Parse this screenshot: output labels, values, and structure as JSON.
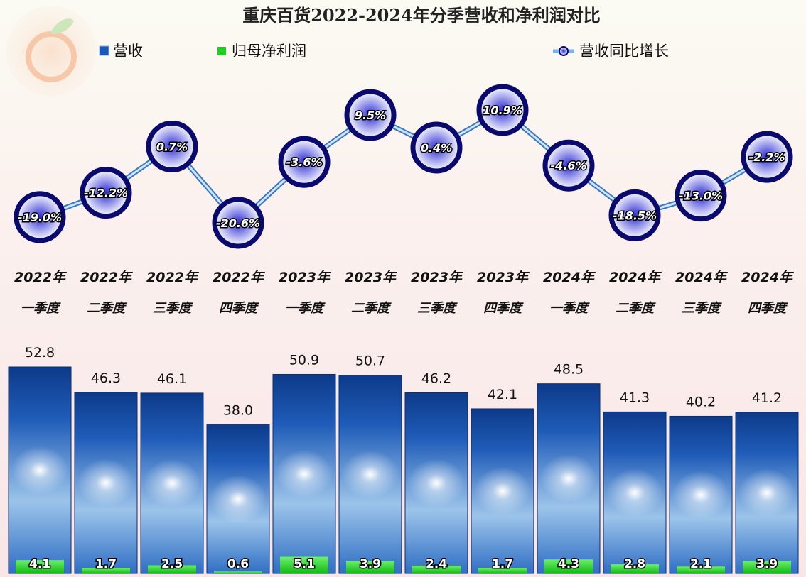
{
  "colors": {
    "revenue_bar": "#1c57b5",
    "revenue_bar_dark": "#0d3a8a",
    "net_profit_bar": "#22cc22",
    "growth_line": "#7fb3e6",
    "growth_marker_ring": "#0a0a6e"
  },
  "chart_data": {
    "type": "bar",
    "title": "重庆百货2022-2024年分季营收和净利润对比",
    "legend_position": "top",
    "categories": [
      [
        "2022年",
        "一季度"
      ],
      [
        "2022年",
        "二季度"
      ],
      [
        "2022年",
        "三季度"
      ],
      [
        "2022年",
        "四季度"
      ],
      [
        "2023年",
        "一季度"
      ],
      [
        "2023年",
        "二季度"
      ],
      [
        "2023年",
        "三季度"
      ],
      [
        "2023年",
        "四季度"
      ],
      [
        "2024年",
        "一季度"
      ],
      [
        "2024年",
        "二季度"
      ],
      [
        "2024年",
        "三季度"
      ],
      [
        "2024年",
        "四季度"
      ]
    ],
    "series": [
      {
        "name": "营收",
        "type": "bar",
        "values": [
          52.8,
          46.3,
          46.1,
          38.0,
          50.9,
          50.7,
          46.2,
          42.1,
          48.5,
          41.3,
          40.2,
          41.2
        ],
        "labels": [
          "52.8",
          "46.3",
          "46.1",
          "38.0",
          "50.9",
          "50.7",
          "46.2",
          "42.1",
          "48.5",
          "41.3",
          "40.2",
          "41.2"
        ]
      },
      {
        "name": "归母净利润",
        "type": "bar",
        "values": [
          4.1,
          1.7,
          2.5,
          0.6,
          5.1,
          3.9,
          2.4,
          1.7,
          4.3,
          2.8,
          2.1,
          3.9
        ],
        "labels": [
          "4.1",
          "1.7",
          "2.5",
          "0.6",
          "5.1",
          "3.9",
          "2.4",
          "1.7",
          "4.3",
          "2.8",
          "2.1",
          "3.9"
        ]
      },
      {
        "name": "营收同比增长",
        "type": "line",
        "values": [
          -19.0,
          -12.2,
          0.7,
          -20.6,
          -3.6,
          9.5,
          0.4,
          10.9,
          -4.6,
          -18.5,
          -13.0,
          -2.2
        ],
        "labels": [
          "-19.0%",
          "-12.2%",
          "0.7%",
          "-20.6%",
          "-3.6%",
          "9.5%",
          "0.4%",
          "10.9%",
          "-4.6%",
          "-18.5%",
          "-13.0%",
          "-2.2%"
        ]
      }
    ],
    "grid": false
  }
}
